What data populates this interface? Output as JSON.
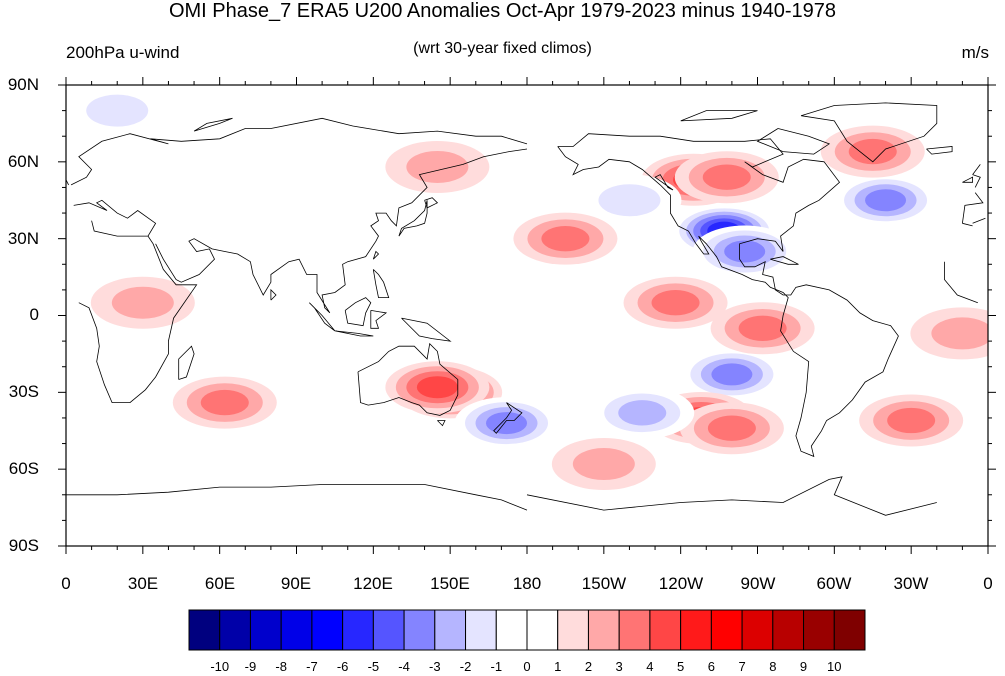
{
  "title": "OMI Phase_7 ERA5 U200 Anomalies Oct-Apr 1979-2023 minus 1940-1978",
  "left_string": "200hPa u-wind",
  "center_string": "(wrt 30-year fixed climos)",
  "right_string": "m/s",
  "lat_labels": [
    "90N",
    "60N",
    "30N",
    "0",
    "30S",
    "60S",
    "90S"
  ],
  "lon_labels": [
    "0",
    "30E",
    "60E",
    "90E",
    "120E",
    "150E",
    "180",
    "150W",
    "120W",
    "90W",
    "60W",
    "30W",
    "0"
  ],
  "colorbar": {
    "colors": [
      "#00007f",
      "#0000a8",
      "#0000cc",
      "#0000e8",
      "#0000ff",
      "#2727ff",
      "#5555ff",
      "#8484ff",
      "#b5b5ff",
      "#e4e4ff",
      "#ffffff",
      "#ffffff",
      "#ffdcdc",
      "#ffa8a8",
      "#ff7474",
      "#ff4646",
      "#ff1a1a",
      "#ff0000",
      "#dc0000",
      "#b80000",
      "#990000",
      "#7f0000"
    ],
    "labels": [
      "-10",
      "-9",
      "-8",
      "-7",
      "-6",
      "-5",
      "-4",
      "-3",
      "-2",
      "-1",
      "0",
      "1",
      "2",
      "3",
      "4",
      "5",
      "6",
      "7",
      "8",
      "9",
      "10"
    ]
  },
  "anomalies": [
    {
      "lon": 150,
      "lat": -30,
      "value": 5
    },
    {
      "lon": 145,
      "lat": -28,
      "value": 4
    },
    {
      "lon": 172,
      "lat": -42,
      "value": -4
    },
    {
      "lon": -103,
      "lat": 33,
      "value": -6
    },
    {
      "lon": -95,
      "lat": 25,
      "value": -4
    },
    {
      "lon": -115,
      "lat": 53,
      "value": 4
    },
    {
      "lon": -102,
      "lat": 54,
      "value": 3
    },
    {
      "lon": -40,
      "lat": 45,
      "value": -4
    },
    {
      "lon": -45,
      "lat": 64,
      "value": 3
    },
    {
      "lon": -100,
      "lat": -23,
      "value": -4
    },
    {
      "lon": -112,
      "lat": -40,
      "value": 4
    },
    {
      "lon": -100,
      "lat": -44,
      "value": 3
    },
    {
      "lon": -122,
      "lat": 5,
      "value": 3
    },
    {
      "lon": -88,
      "lat": -5,
      "value": 3
    },
    {
      "lon": -135,
      "lat": -38,
      "value": -3
    },
    {
      "lon": -140,
      "lat": 45,
      "value": -2
    },
    {
      "lon": -165,
      "lat": 30,
      "value": 3
    },
    {
      "lon": 62,
      "lat": -34,
      "value": 3
    },
    {
      "lon": 30,
      "lat": 5,
      "value": 2
    },
    {
      "lon": 20,
      "lat": 80,
      "value": -2
    },
    {
      "lon": 145,
      "lat": 58,
      "value": 2
    },
    {
      "lon": -30,
      "lat": -41,
      "value": 3
    },
    {
      "lon": -150,
      "lat": -58,
      "value": 2
    },
    {
      "lon": -10,
      "lat": -7,
      "value": 2
    }
  ]
}
